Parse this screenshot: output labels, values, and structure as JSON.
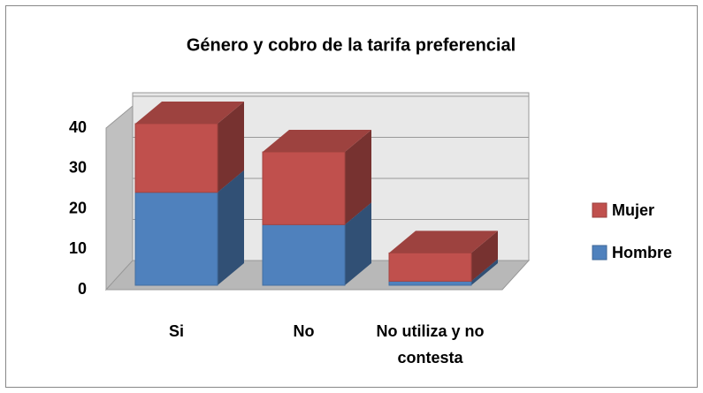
{
  "chart_data": {
    "type": "bar3d_stacked",
    "title": "Género y cobro de la tarifa preferencial",
    "categories": [
      "Si",
      "No",
      "No utiliza y no contesta"
    ],
    "series": [
      {
        "name": "Hombre",
        "color": "#4f81bd",
        "values": [
          23,
          15,
          1
        ]
      },
      {
        "name": "Mujer",
        "color": "#c0504d",
        "values": [
          17,
          18,
          7
        ]
      }
    ],
    "ylim": [
      0,
      40
    ],
    "yticks": [
      0,
      10,
      20,
      30,
      40
    ],
    "grid": true,
    "legend": "right"
  }
}
